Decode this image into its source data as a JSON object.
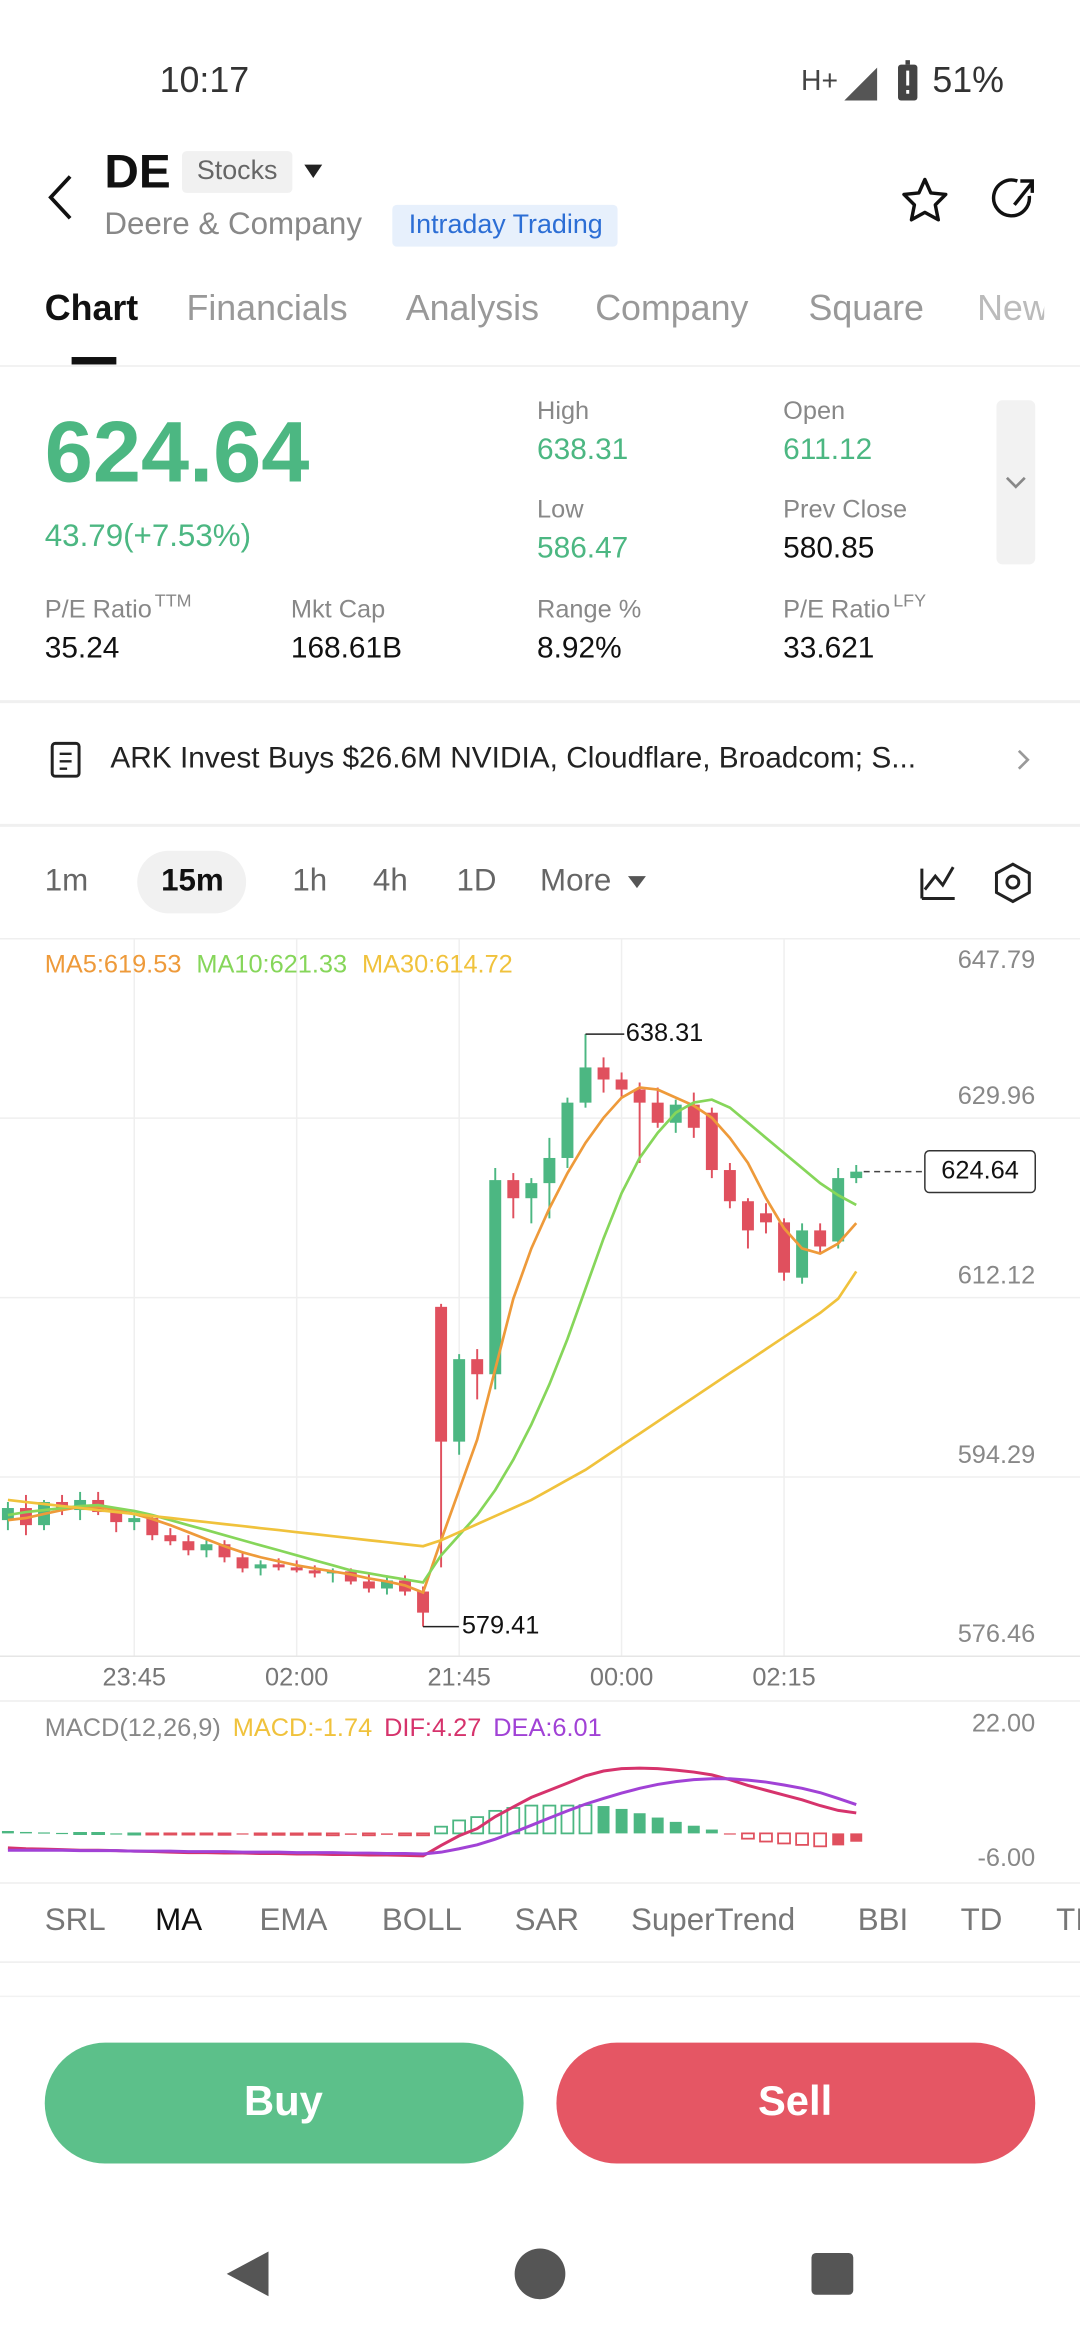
{
  "status": {
    "time": "10:17",
    "network": "H+",
    "battery": "51%"
  },
  "header": {
    "symbol": "DE",
    "badge": "Stocks",
    "company": "Deere & Company",
    "tag": "Intraday Trading"
  },
  "tabs": {
    "items": [
      "Chart",
      "Financials",
      "Analysis",
      "Company",
      "Square",
      "News"
    ],
    "selected": 0
  },
  "quote": {
    "price": "624.64",
    "change": "43.79(+7.53%)",
    "color": "#4cb782",
    "stats": [
      {
        "label": "High",
        "value": "638.31",
        "color": "#4cb782"
      },
      {
        "label": "Open",
        "value": "611.12",
        "color": "#4cb782"
      },
      {
        "label": "Low",
        "value": "586.47",
        "color": "#4cb782"
      },
      {
        "label": "Prev Close",
        "value": "580.85",
        "color": "#111111"
      },
      {
        "label": "P/E Ratio",
        "sup": "TTM",
        "value": "35.24",
        "color": "#111111"
      },
      {
        "label": "Mkt Cap",
        "value": "168.61B",
        "color": "#111111"
      },
      {
        "label": "Range %",
        "value": "8.92%",
        "color": "#111111"
      },
      {
        "label": "P/E Ratio",
        "sup": "LFY",
        "value": "33.621",
        "color": "#111111"
      }
    ]
  },
  "news": {
    "headline": "ARK Invest Buys $26.6M NVIDIA, Cloudflare, Broadcom; S..."
  },
  "periods": {
    "items": [
      "1m",
      "15m",
      "1h",
      "4h",
      "1D",
      "More"
    ],
    "selected": 1
  },
  "chart_data": [
    {
      "type": "candlestick",
      "categories": [
        null,
        null,
        null,
        null,
        null,
        null,
        null,
        "23:45",
        null,
        null,
        null,
        null,
        null,
        null,
        null,
        null,
        "02:00",
        null,
        null,
        null,
        null,
        null,
        null,
        null,
        null,
        "21:45",
        null,
        null,
        null,
        null,
        null,
        null,
        null,
        null,
        "00:00",
        null,
        null,
        null,
        null,
        null,
        null,
        null,
        null,
        "02:15",
        null,
        null,
        null,
        null
      ],
      "candles": [
        [
          590.0,
          591.8,
          589.0,
          591.2
        ],
        [
          591.2,
          592.5,
          588.5,
          589.5
        ],
        [
          589.5,
          592.0,
          589.0,
          591.8
        ],
        [
          591.8,
          592.5,
          590.5,
          591.0
        ],
        [
          591.0,
          592.8,
          590.0,
          592.0
        ],
        [
          592.0,
          592.8,
          590.5,
          590.8
        ],
        [
          590.8,
          591.2,
          588.8,
          589.8
        ],
        [
          589.8,
          590.5,
          589.0,
          590.2
        ],
        [
          590.2,
          590.5,
          588.0,
          588.5
        ],
        [
          588.5,
          589.2,
          587.5,
          587.9
        ],
        [
          587.9,
          588.5,
          586.5,
          587.0
        ],
        [
          587.0,
          588.0,
          586.3,
          587.6
        ],
        [
          587.6,
          588.0,
          585.8,
          586.3
        ],
        [
          586.3,
          586.8,
          584.8,
          585.2
        ],
        [
          585.2,
          586.0,
          584.5,
          585.6
        ],
        [
          585.6,
          586.2,
          585.0,
          585.3
        ],
        [
          585.3,
          586.0,
          584.8,
          585.0
        ],
        [
          585.0,
          585.5,
          584.3,
          584.7
        ],
        [
          584.7,
          585.2,
          583.8,
          584.9
        ],
        [
          584.9,
          585.2,
          583.6,
          583.9
        ],
        [
          583.9,
          584.8,
          582.8,
          583.2
        ],
        [
          583.2,
          584.5,
          582.6,
          584.0
        ],
        [
          584.0,
          584.5,
          582.5,
          582.9
        ],
        [
          582.9,
          583.4,
          579.41,
          580.8
        ],
        [
          611.2,
          611.5,
          585.3,
          597.8
        ],
        [
          597.8,
          606.5,
          596.5,
          606.0
        ],
        [
          606.0,
          607.0,
          602.0,
          604.5
        ],
        [
          604.5,
          625.0,
          603.0,
          623.8
        ],
        [
          623.8,
          624.5,
          620.0,
          622.0
        ],
        [
          622.0,
          624.0,
          619.5,
          623.5
        ],
        [
          623.5,
          628.0,
          620.0,
          626.0
        ],
        [
          626.0,
          632.0,
          625.0,
          631.5
        ],
        [
          631.5,
          638.31,
          631.0,
          635.0
        ],
        [
          635.0,
          636.0,
          632.5,
          633.8
        ],
        [
          633.8,
          634.5,
          632.0,
          632.8
        ],
        [
          632.8,
          633.5,
          625.5,
          631.5
        ],
        [
          631.5,
          633.0,
          629.0,
          629.5
        ],
        [
          629.5,
          631.8,
          628.5,
          631.3
        ],
        [
          631.3,
          632.5,
          628.0,
          629.0
        ],
        [
          630.5,
          631.0,
          624.0,
          624.8
        ],
        [
          624.8,
          625.5,
          621.0,
          621.7
        ],
        [
          621.7,
          622.0,
          617.0,
          618.8
        ],
        [
          620.5,
          621.5,
          618.5,
          619.6
        ],
        [
          619.6,
          620.0,
          613.8,
          614.6
        ],
        [
          614.1,
          619.5,
          613.5,
          618.8
        ],
        [
          618.8,
          619.5,
          616.5,
          617.2
        ],
        [
          617.7,
          625.0,
          617.0,
          624.0
        ],
        [
          624.0,
          625.3,
          623.5,
          624.64
        ]
      ],
      "up_color": "#4cb782",
      "down_color": "#e0505e",
      "ylim": [
        576.46,
        647.79
      ],
      "yticks": [
        576.46,
        594.29,
        612.12,
        629.96,
        647.79
      ],
      "grid": true,
      "ma": [
        {
          "label": "MA5:619.53",
          "color": "#ee9a3a",
          "values": [
            590.0,
            590.2,
            590.6,
            591.0,
            591.3,
            591.3,
            591.0,
            590.6,
            590.1,
            589.5,
            588.8,
            588.1,
            587.4,
            586.8,
            586.3,
            585.9,
            585.5,
            585.2,
            584.9,
            584.6,
            584.2,
            583.9,
            583.5,
            582.8,
            588.0,
            593.0,
            598.0,
            605.0,
            612.0,
            617.0,
            621.0,
            624.5,
            627.5,
            630.0,
            632.0,
            633.0,
            632.8,
            632.0,
            631.2,
            630.0,
            628.0,
            625.5,
            622.0,
            619.0,
            617.0,
            616.5,
            617.5,
            619.53
          ]
        },
        {
          "label": "MA10:621.33",
          "color": "#86d65a",
          "values": [
            590.5,
            590.8,
            591.0,
            591.2,
            591.4,
            591.5,
            591.2,
            590.9,
            590.5,
            590.0,
            589.5,
            589.0,
            588.5,
            588.0,
            587.5,
            587.0,
            586.5,
            586.0,
            585.5,
            585.0,
            584.7,
            584.4,
            584.1,
            583.8,
            586.5,
            588.5,
            590.5,
            593.0,
            596.0,
            599.5,
            603.5,
            608.0,
            613.0,
            618.0,
            622.5,
            626.0,
            628.5,
            630.5,
            631.5,
            631.8,
            631.0,
            629.5,
            628.0,
            626.5,
            625.0,
            623.5,
            622.3,
            621.33
          ]
        },
        {
          "label": "MA30:614.72",
          "color": "#f0c23c",
          "values": [
            592.0,
            591.8,
            591.6,
            591.4,
            591.2,
            591.0,
            590.8,
            590.6,
            590.4,
            590.2,
            590.0,
            589.8,
            589.6,
            589.4,
            589.2,
            589.0,
            588.8,
            588.6,
            588.4,
            588.2,
            588.0,
            587.8,
            587.6,
            587.4,
            588.0,
            588.8,
            589.6,
            590.4,
            591.2,
            592.0,
            593.0,
            594.0,
            595.0,
            596.2,
            597.4,
            598.6,
            599.8,
            601.0,
            602.2,
            603.4,
            604.6,
            605.8,
            607.0,
            608.2,
            609.4,
            610.6,
            612.0,
            614.72
          ]
        }
      ]
    },
    {
      "type": "macd",
      "legend": [
        {
          "text": "MACD(12,26,9)",
          "color": "#888888"
        },
        {
          "text": "MACD:-1.74",
          "color": "#f0c23c"
        },
        {
          "text": "DIF:4.27",
          "color": "#d6336c"
        },
        {
          "text": "DEA:6.01",
          "color": "#a142d6"
        }
      ],
      "ylim": [
        -6,
        22
      ],
      "yticks": [
        {
          "value": -6,
          "label": "-6.00"
        },
        {
          "value": 22,
          "label": "22.00"
        }
      ],
      "up_color": "#4cb782",
      "down_color": "#e0505e",
      "macd": [
        0.5,
        0.3,
        0.2,
        0.1,
        0.1,
        0.1,
        0,
        0,
        -0.1,
        -0.2,
        -0.2,
        -0.2,
        -0.3,
        -0.2,
        -0.3,
        -0.3,
        -0.3,
        -0.3,
        -0.4,
        -0.3,
        -0.4,
        -0.3,
        -0.4,
        -0.4,
        1.4,
        2.7,
        3.4,
        4.7,
        5.3,
        5.8,
        5.8,
        5.8,
        5.9,
        5.7,
        5.1,
        4.2,
        3.3,
        2.4,
        1.6,
        0.8,
        -0.2,
        -1.1,
        -1.7,
        -2.1,
        -2.4,
        -2.7,
        -2.5,
        -1.74
      ],
      "dif": {
        "color": "#d6336c",
        "values": [
          -3.0,
          -3.2,
          -3.3,
          -3.4,
          -3.5,
          -3.5,
          -3.6,
          -3.7,
          -3.8,
          -3.9,
          -4.0,
          -4.0,
          -4.1,
          -4.1,
          -4.2,
          -4.2,
          -4.3,
          -4.3,
          -4.4,
          -4.4,
          -4.5,
          -4.5,
          -4.6,
          -4.7,
          -2.5,
          -0.5,
          1.0,
          3.5,
          5.5,
          7.5,
          9.0,
          10.5,
          12.0,
          13.0,
          13.5,
          13.6,
          13.5,
          13.2,
          12.8,
          12.2,
          11.2,
          10.0,
          9.0,
          8.0,
          7.0,
          5.8,
          4.8,
          4.27
        ]
      },
      "dea": {
        "color": "#a142d6",
        "values": [
          -3.5,
          -3.5,
          -3.5,
          -3.5,
          -3.6,
          -3.6,
          -3.6,
          -3.7,
          -3.7,
          -3.7,
          -3.8,
          -3.8,
          -3.8,
          -3.9,
          -3.9,
          -3.9,
          -4.0,
          -4.0,
          -4.0,
          -4.1,
          -4.1,
          -4.2,
          -4.2,
          -4.3,
          -3.9,
          -3.2,
          -2.4,
          -1.2,
          0.2,
          1.7,
          3.2,
          4.7,
          6.1,
          7.3,
          8.4,
          9.4,
          10.2,
          10.8,
          11.2,
          11.4,
          11.4,
          11.1,
          10.7,
          10.1,
          9.4,
          8.5,
          7.3,
          6.01
        ]
      }
    }
  ],
  "indicators": {
    "items": [
      "SRL",
      "MA",
      "EMA",
      "BOLL",
      "SAR",
      "SuperTrend",
      "BBI",
      "TD",
      "TI"
    ],
    "selected": 1
  },
  "actions": {
    "buy": "Buy",
    "sell": "Sell"
  }
}
